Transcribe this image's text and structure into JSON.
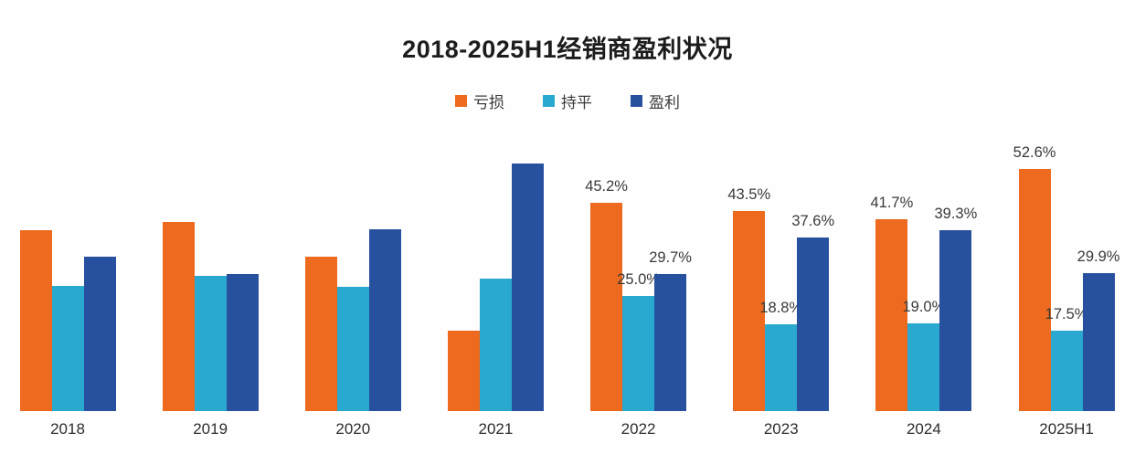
{
  "title": "2018-2025H1经销商盈利状况",
  "chart_data": {
    "type": "bar",
    "title": "2018-2025H1经销商盈利状况",
    "categories": [
      "2018",
      "2019",
      "2020",
      "2021",
      "2022",
      "2023",
      "2024",
      "2025H1"
    ],
    "series": [
      {
        "key": "loss",
        "name": "亏损",
        "color": "#ED6A1E",
        "values": [
          39.3,
          41.0,
          33.6,
          17.5,
          45.2,
          43.5,
          41.7,
          52.6
        ]
      },
      {
        "key": "even",
        "name": "持平",
        "color": "#29A9CF",
        "values": [
          27.1,
          29.3,
          27.0,
          28.7,
          25.0,
          18.8,
          19.0,
          17.5
        ]
      },
      {
        "key": "profit",
        "name": "盈利",
        "color": "#27509F",
        "values": [
          33.5,
          29.7,
          39.4,
          53.8,
          29.7,
          37.6,
          39.3,
          29.9
        ]
      }
    ],
    "data_labels_shown": [
      false,
      false,
      false,
      false,
      true,
      true,
      true,
      true
    ],
    "data_label_format": "{value}%",
    "unit": "%",
    "ylim": [
      0,
      55
    ],
    "grid": false,
    "axis_lines": false,
    "legend_position": "top",
    "background_color": "#FEFEFE",
    "label_text_color": "#3A3A3A"
  }
}
